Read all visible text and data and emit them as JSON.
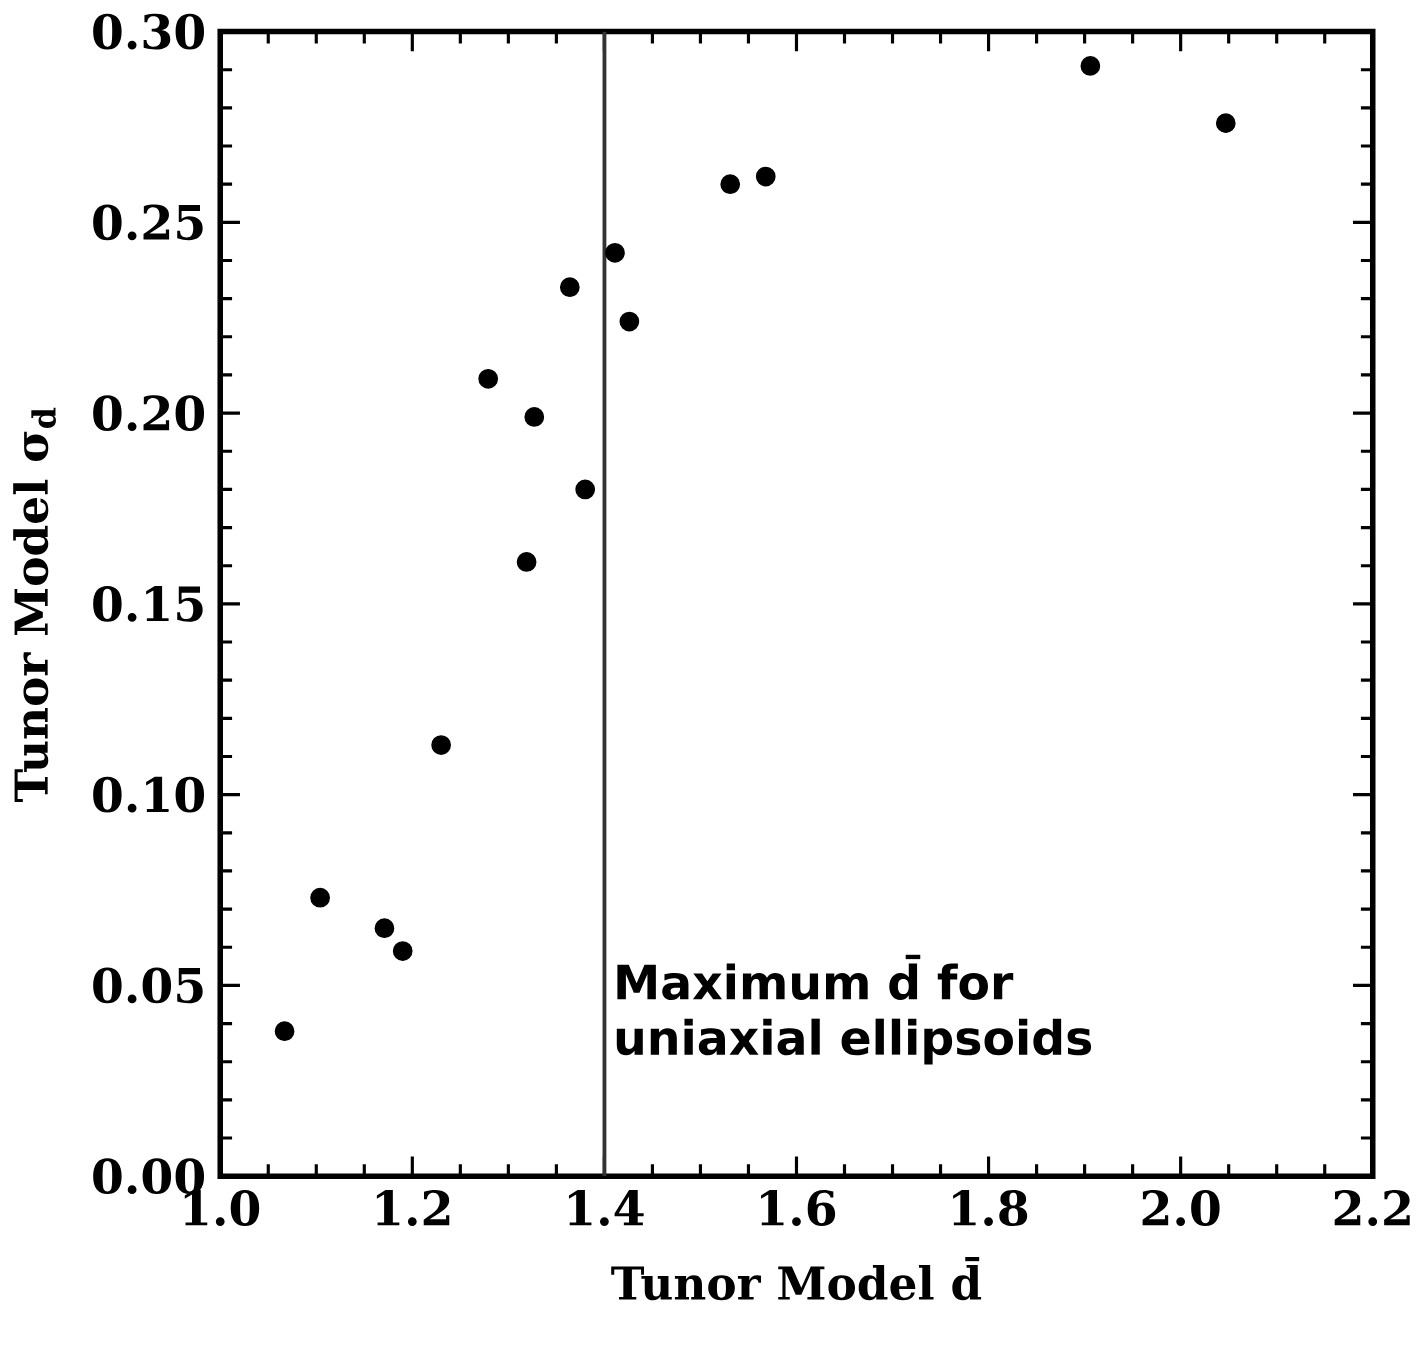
{
  "chart_data": {
    "type": "scatter",
    "xlabel": "Tunor Model d̄",
    "ylabel": "Tunor Model σ$_{d}$",
    "x": [
      1.067,
      1.104,
      1.171,
      1.19,
      1.23,
      1.319,
      1.38,
      1.279,
      1.327,
      1.364,
      1.411,
      1.426,
      1.531,
      1.568,
      1.906,
      2.047
    ],
    "values": [
      0.038,
      0.073,
      0.065,
      0.059,
      0.113,
      0.161,
      0.18,
      0.209,
      0.199,
      0.233,
      0.242,
      0.224,
      0.26,
      0.262,
      0.291,
      0.276
    ],
    "color": "#000000",
    "marker": "circle",
    "xlim": [
      1.0,
      2.2
    ],
    "ylim": [
      0.0,
      0.3
    ],
    "xticks": [
      {
        "value": 1.0,
        "label": "1.0"
      },
      {
        "value": 1.2,
        "label": "1.2"
      },
      {
        "value": 1.4,
        "label": "1.4"
      },
      {
        "value": 1.6,
        "label": "1.6"
      },
      {
        "value": 1.8,
        "label": "1.8"
      },
      {
        "value": 2.0,
        "label": "2.0"
      },
      {
        "value": 2.2,
        "label": "2.2"
      }
    ],
    "yticks": [
      {
        "value": 0.0,
        "label": "0.00"
      },
      {
        "value": 0.05,
        "label": "0.05"
      },
      {
        "value": 0.1,
        "label": "0.10"
      },
      {
        "value": 0.15,
        "label": "0.15"
      },
      {
        "value": 0.2,
        "label": "0.20"
      },
      {
        "value": 0.25,
        "label": "0.25"
      },
      {
        "value": 0.3,
        "label": "0.30"
      }
    ],
    "ref_lines": [
      {
        "axis": "x",
        "value": 1.4,
        "label": "Maximum d̄ for uniaxial ellipsoids",
        "color": "#333333"
      }
    ]
  }
}
